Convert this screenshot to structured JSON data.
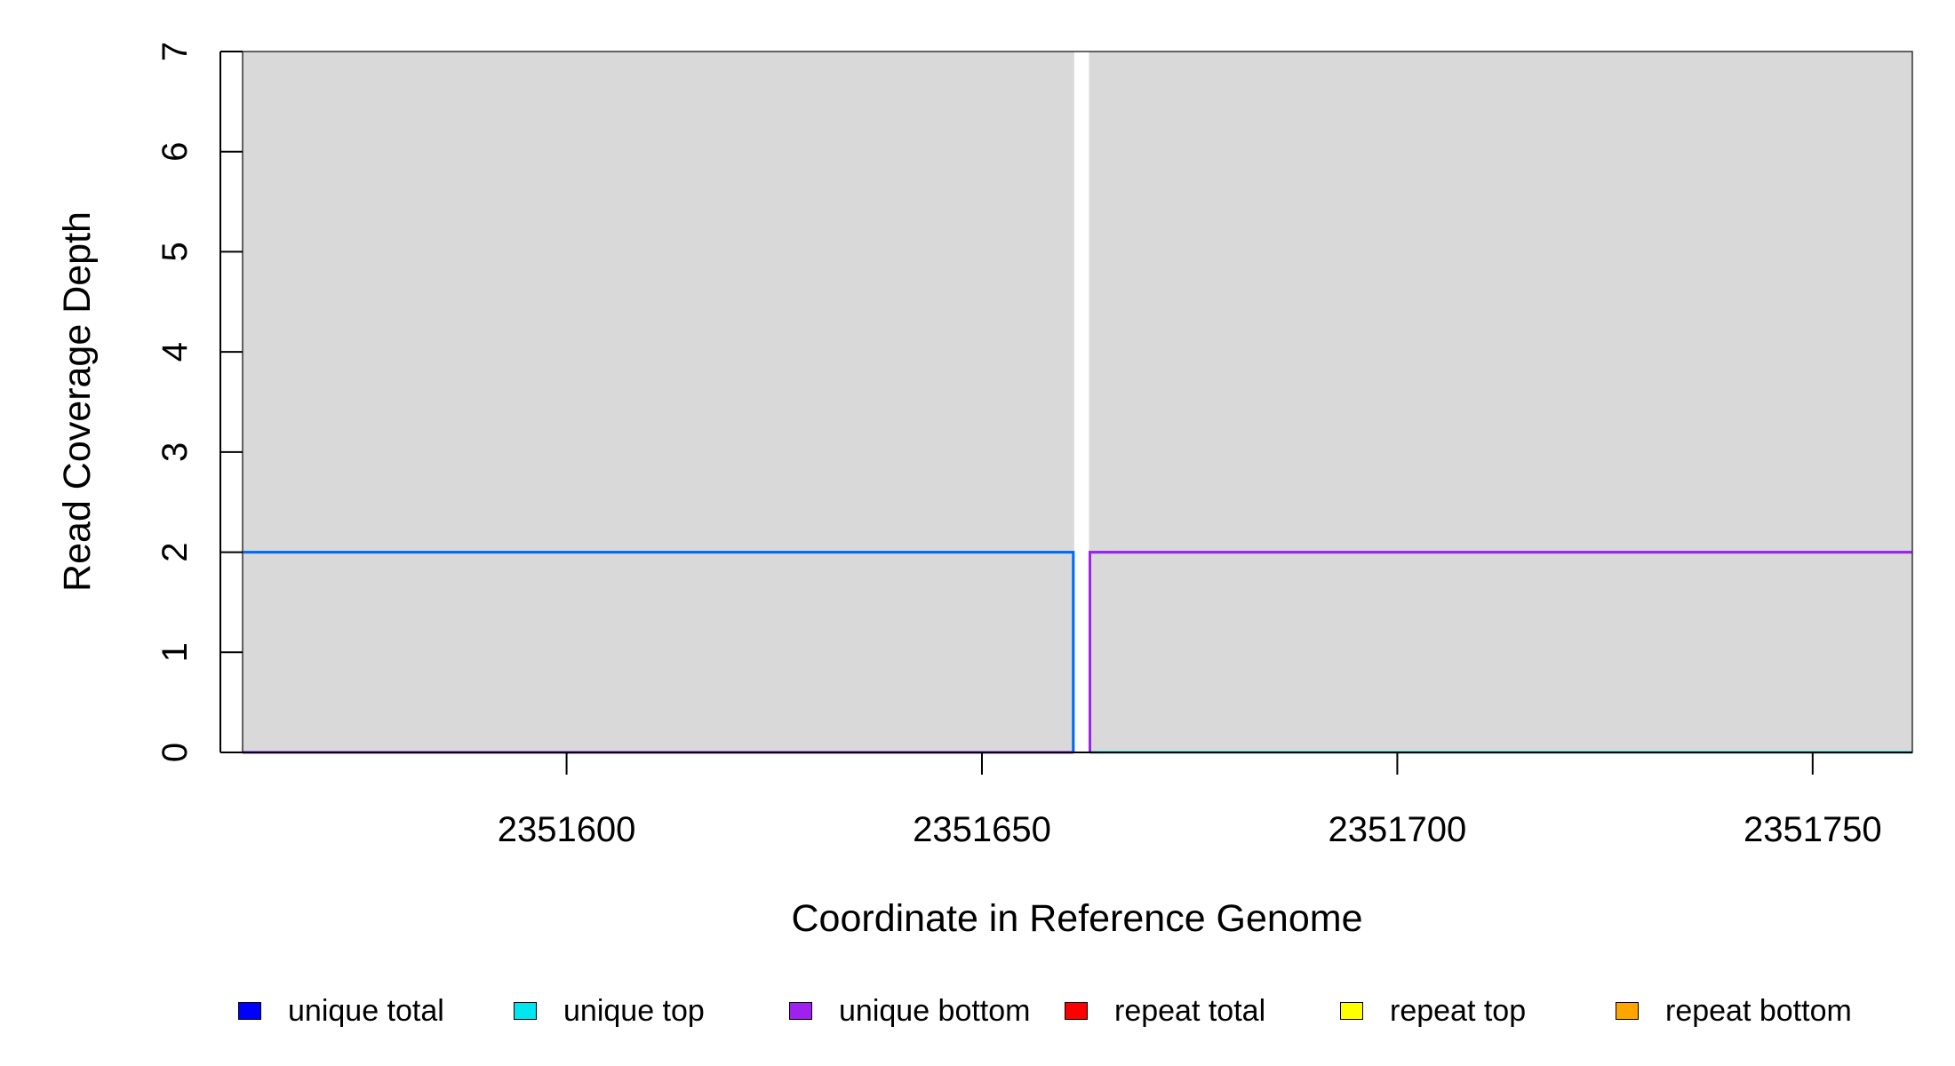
{
  "chart_data": {
    "type": "line",
    "xlabel": "Coordinate in Reference Genome",
    "ylabel": "Read Coverage Depth",
    "xlim": [
      2351561,
      2351762
    ],
    "ylim": [
      0,
      7
    ],
    "x_ticks": [
      2351600,
      2351650,
      2351700,
      2351750
    ],
    "y_ticks": [
      0,
      1,
      2,
      3,
      4,
      5,
      6,
      7
    ],
    "gap_region": [
      2351661,
      2351663
    ],
    "grid": false,
    "legend_position": "bottom",
    "series": [
      {
        "name": "unique total",
        "color": "#0000ff",
        "segments": [
          [
            [
              2351561,
              2
            ],
            [
              2351661,
              2
            ],
            [
              2351661,
              0
            ]
          ],
          [
            [
              2351663,
              0
            ],
            [
              2351663,
              2
            ],
            [
              2351762,
              2
            ]
          ]
        ]
      },
      {
        "name": "unique top",
        "color": "#00e5ee",
        "segments": [
          [
            [
              2351561,
              2
            ],
            [
              2351661,
              2
            ],
            [
              2351661,
              0
            ]
          ],
          [
            [
              2351663,
              0
            ],
            [
              2351762,
              0
            ]
          ]
        ]
      },
      {
        "name": "unique bottom",
        "color": "#a020f0",
        "segments": [
          [
            [
              2351561,
              0
            ],
            [
              2351661,
              0
            ]
          ],
          [
            [
              2351663,
              0
            ],
            [
              2351663,
              2
            ],
            [
              2351762,
              2
            ]
          ]
        ]
      },
      {
        "name": "repeat total",
        "color": "#ff0000",
        "segments": [
          [
            [
              2351561,
              0
            ],
            [
              2351661,
              0
            ]
          ],
          [
            [
              2351663,
              0
            ],
            [
              2351762,
              0
            ]
          ]
        ]
      },
      {
        "name": "repeat top",
        "color": "#ffff00",
        "segments": [
          [
            [
              2351561,
              0
            ],
            [
              2351661,
              0
            ]
          ],
          [
            [
              2351663,
              0
            ],
            [
              2351762,
              0
            ]
          ]
        ]
      },
      {
        "name": "repeat bottom",
        "color": "#ffa500",
        "segments": [
          [
            [
              2351561,
              0
            ],
            [
              2351661,
              0
            ]
          ],
          [
            [
              2351663,
              0
            ],
            [
              2351762,
              0
            ]
          ]
        ]
      }
    ],
    "legend_entries": [
      {
        "label": "unique total",
        "color": "#0000ff"
      },
      {
        "label": "unique top",
        "color": "#00e5ee"
      },
      {
        "label": "unique bottom",
        "color": "#a020f0"
      },
      {
        "label": "repeat total",
        "color": "#ff0000"
      },
      {
        "label": "repeat top",
        "color": "#ffff00"
      },
      {
        "label": "repeat bottom",
        "color": "#ffa500"
      }
    ]
  }
}
